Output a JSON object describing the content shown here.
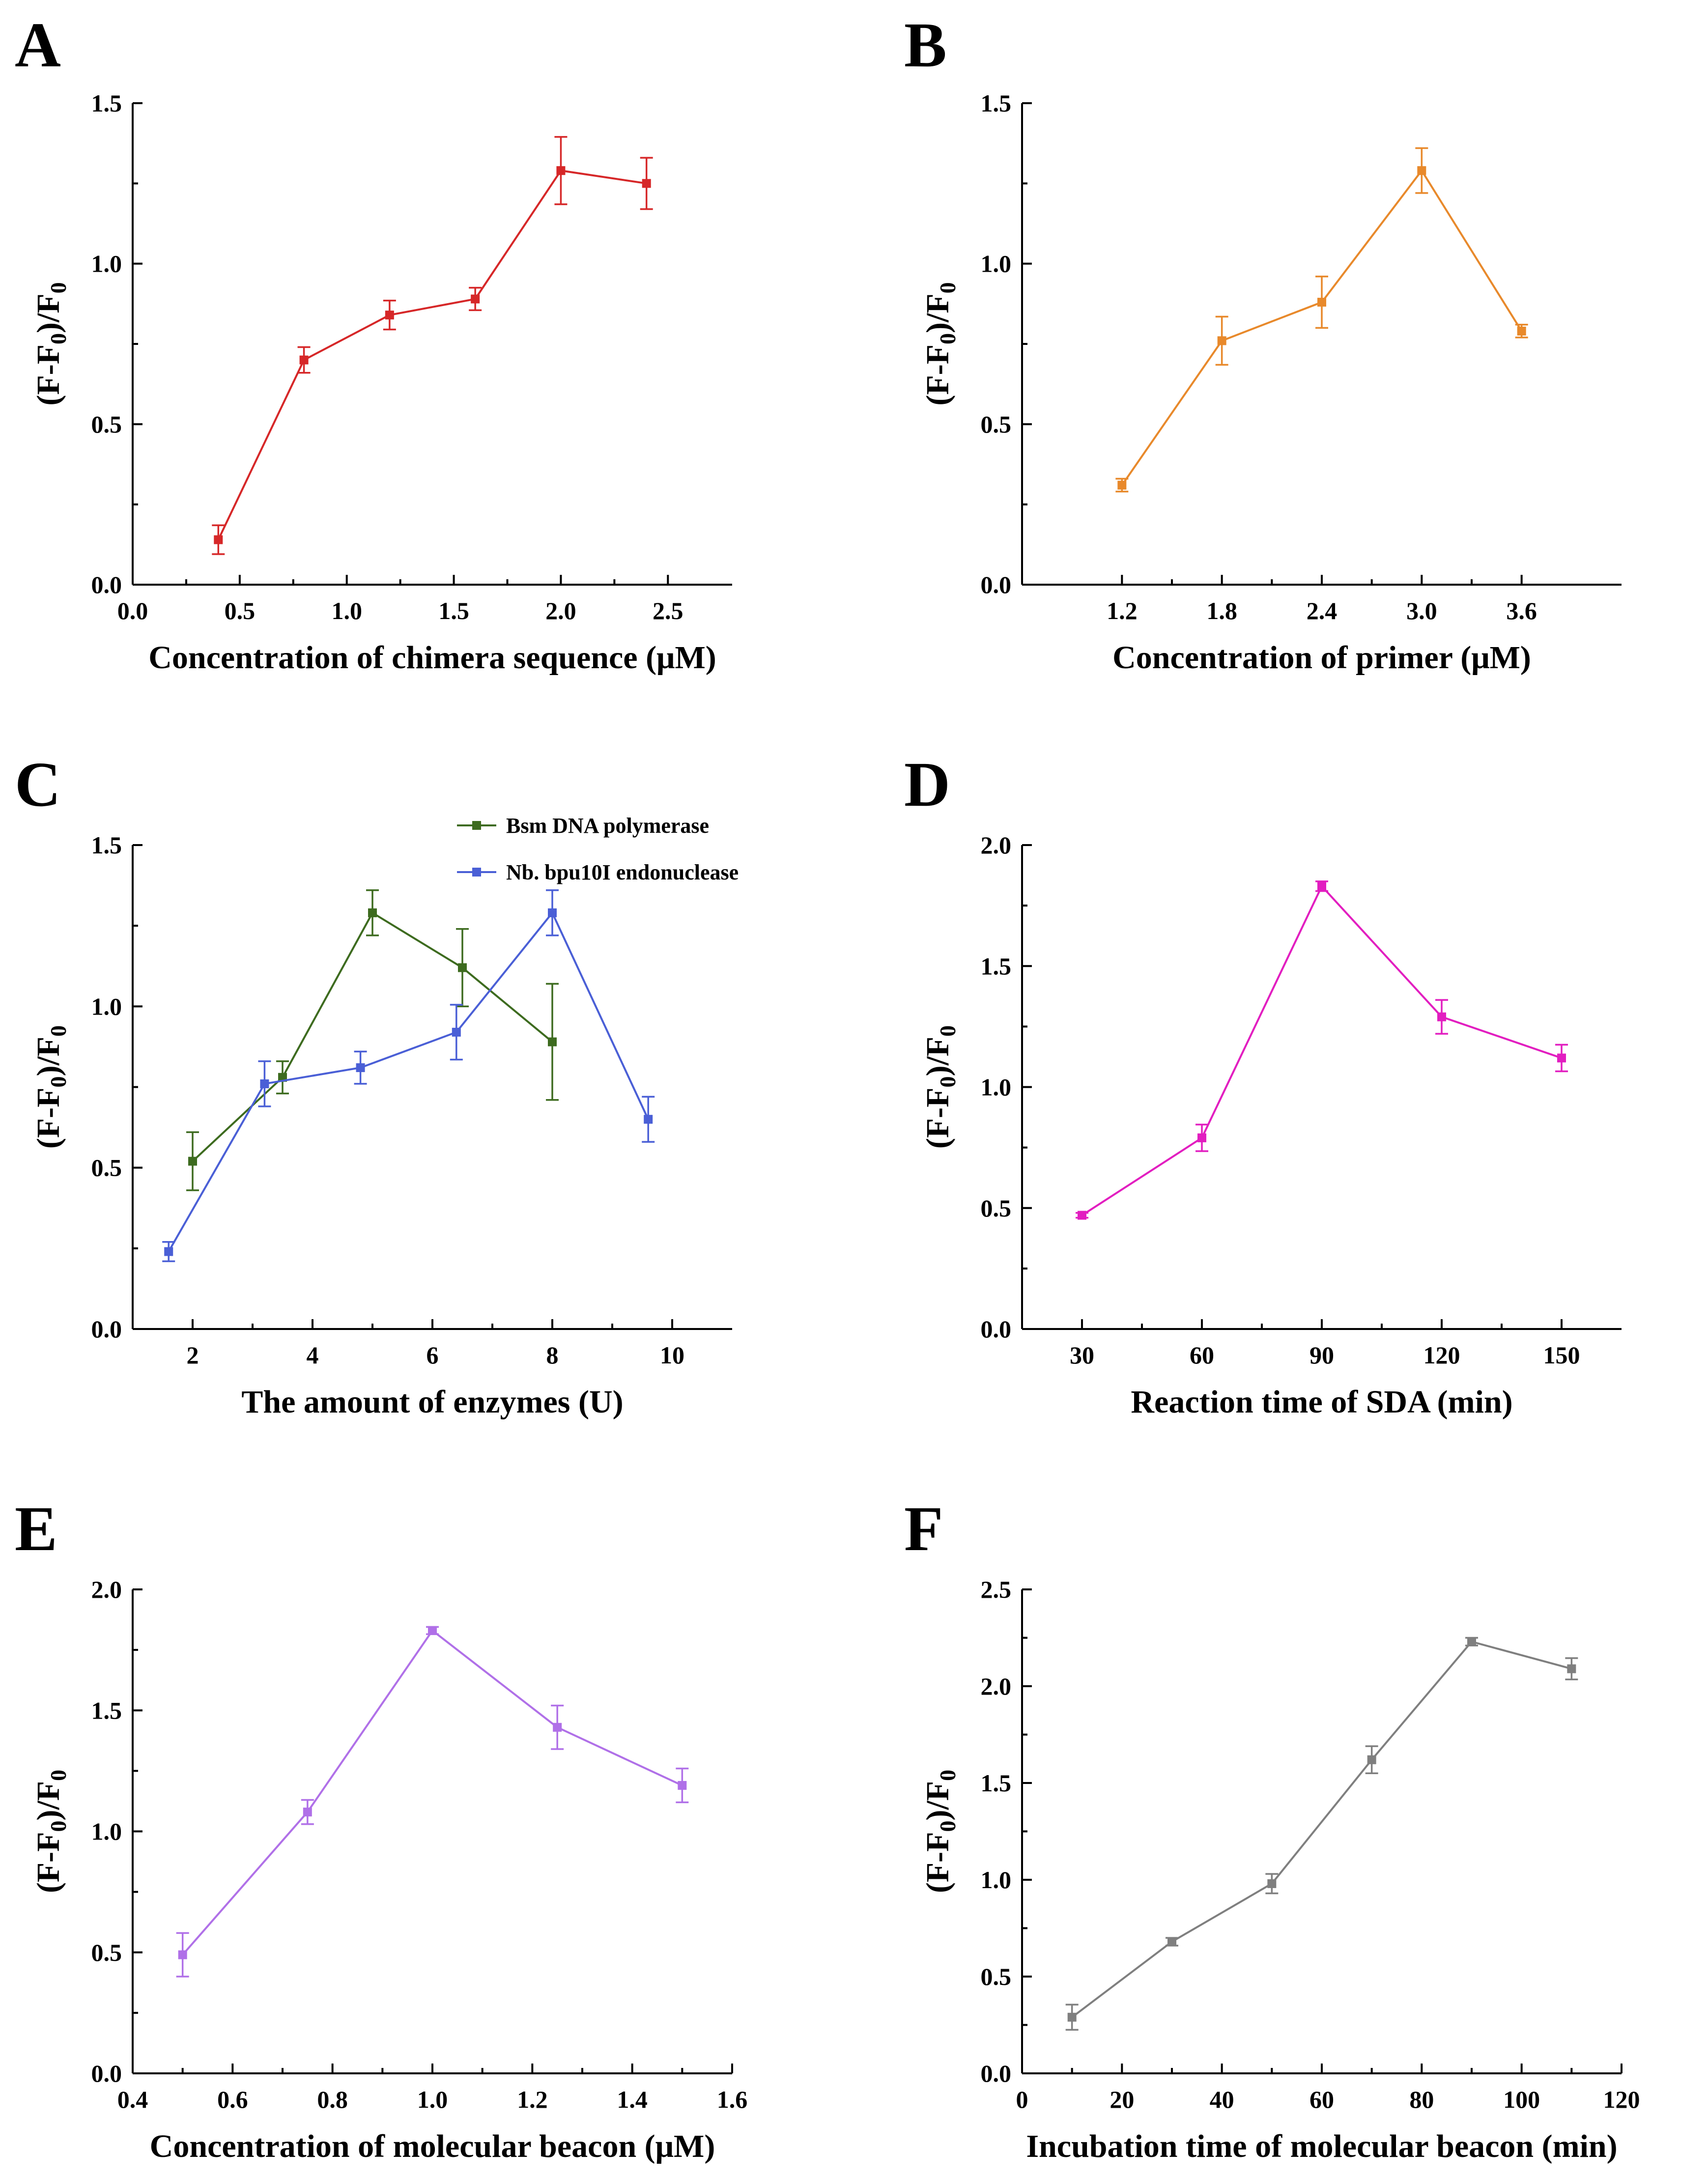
{
  "chart_data": [
    {
      "type": "line",
      "panel": "A",
      "xlabel": "Concentration of chimera sequence (μM)",
      "ylabel": "(F-F0)/F0",
      "ylabel_parts": {
        "open": "(F-F",
        "sub1": "0",
        "mid": ")/F",
        "sub2": "0"
      },
      "xlim": [
        0.0,
        2.8
      ],
      "ylim": [
        0.0,
        1.5
      ],
      "xticks": [
        0.0,
        0.5,
        1.0,
        1.5,
        2.0,
        2.5
      ],
      "xtick_labels": [
        "0.0",
        "0.5",
        "1.0",
        "1.5",
        "2.0",
        "2.5"
      ],
      "yticks": [
        0.0,
        0.5,
        1.0,
        1.5
      ],
      "ytick_labels": [
        "0.0",
        "0.5",
        "1.0",
        "1.5"
      ],
      "series": [
        {
          "name": "",
          "color": "#d62728",
          "x": [
            0.4,
            0.8,
            1.2,
            1.6,
            2.0,
            2.4
          ],
          "y": [
            0.14,
            0.7,
            0.84,
            0.89,
            1.29,
            1.25
          ],
          "err": [
            0.045,
            0.04,
            0.045,
            0.035,
            0.105,
            0.08
          ]
        }
      ]
    },
    {
      "type": "line",
      "panel": "B",
      "xlabel": "Concentration of primer (μM)",
      "ylabel": "(F-F0)/F0",
      "ylabel_parts": {
        "open": "(F-F",
        "sub1": "0",
        "mid": ")/F",
        "sub2": "0"
      },
      "xlim": [
        0.6,
        4.2
      ],
      "ylim": [
        0.0,
        1.5
      ],
      "xticks": [
        1.2,
        1.8,
        2.4,
        3.0,
        3.6
      ],
      "xtick_labels": [
        "1.2",
        "1.8",
        "2.4",
        "3.0",
        "3.6"
      ],
      "yticks": [
        0.0,
        0.5,
        1.0,
        1.5
      ],
      "ytick_labels": [
        "0.0",
        "0.5",
        "1.0",
        "1.5"
      ],
      "series": [
        {
          "name": "",
          "color": "#e8892b",
          "x": [
            1.2,
            1.8,
            2.4,
            3.0,
            3.6
          ],
          "y": [
            0.31,
            0.76,
            0.88,
            1.29,
            0.79
          ],
          "err": [
            0.02,
            0.075,
            0.08,
            0.07,
            0.02
          ]
        }
      ]
    },
    {
      "type": "line",
      "panel": "C",
      "xlabel": "The amount of enzymes (U)",
      "ylabel": "(F-F0)/F0",
      "ylabel_parts": {
        "open": "(F-F",
        "sub1": "0",
        "mid": ")/F",
        "sub2": "0"
      },
      "xlim": [
        1.0,
        11.0
      ],
      "ylim": [
        0.0,
        1.5
      ],
      "xticks": [
        2,
        4,
        6,
        8,
        10
      ],
      "xtick_labels": [
        "2",
        "4",
        "6",
        "8",
        "10"
      ],
      "yticks": [
        0.0,
        0.5,
        1.0,
        1.5
      ],
      "ytick_labels": [
        "0.0",
        "0.5",
        "1.0",
        "1.5"
      ],
      "legend": "top-right",
      "series": [
        {
          "name": "Bsm DNA polymerase",
          "color": "#3d6b1f",
          "x": [
            2.0,
            3.5,
            5.0,
            6.5,
            8.0
          ],
          "y": [
            0.52,
            0.78,
            1.29,
            1.12,
            0.89
          ],
          "err": [
            0.09,
            0.05,
            0.07,
            0.12,
            0.18
          ]
        },
        {
          "name": "Nb. bpu10I endonuclease",
          "color": "#4a5fd6",
          "x": [
            1.6,
            3.2,
            4.8,
            6.4,
            8.0,
            9.6
          ],
          "y": [
            0.24,
            0.76,
            0.81,
            0.92,
            1.29,
            0.65
          ],
          "err": [
            0.03,
            0.07,
            0.05,
            0.085,
            0.07,
            0.07
          ]
        }
      ]
    },
    {
      "type": "line",
      "panel": "D",
      "xlabel": "Reaction time of SDA (min)",
      "ylabel": "(F-F0)/F0",
      "ylabel_parts": {
        "open": "(F-F",
        "sub1": "0",
        "mid": ")/F",
        "sub2": "0"
      },
      "xlim": [
        15,
        165
      ],
      "ylim": [
        0.0,
        2.0
      ],
      "xticks": [
        30,
        60,
        90,
        120,
        150
      ],
      "xtick_labels": [
        "30",
        "60",
        "90",
        "120",
        "150"
      ],
      "yticks": [
        0.0,
        0.5,
        1.0,
        1.5,
        2.0
      ],
      "ytick_labels": [
        "0.0",
        "0.5",
        "1.0",
        "1.5",
        "2.0"
      ],
      "series": [
        {
          "name": "",
          "color": "#e21ec0",
          "x": [
            30,
            60,
            90,
            120,
            150
          ],
          "y": [
            0.47,
            0.79,
            1.83,
            1.29,
            1.12
          ],
          "err": [
            0.01,
            0.055,
            0.02,
            0.07,
            0.055
          ]
        }
      ]
    },
    {
      "type": "line",
      "panel": "E",
      "xlabel": "Concentration of molecular beacon (μM)",
      "ylabel": "(F-F0)/F0",
      "ylabel_parts": {
        "open": "(F-F",
        "sub1": "0",
        "mid": ")/F",
        "sub2": "0"
      },
      "xlim": [
        0.4,
        1.6
      ],
      "ylim": [
        0.0,
        2.0
      ],
      "xticks": [
        0.4,
        0.6,
        0.8,
        1.0,
        1.2,
        1.4,
        1.6
      ],
      "xtick_labels": [
        "0.4",
        "0.6",
        "0.8",
        "1.0",
        "1.2",
        "1.4",
        "1.6"
      ],
      "yticks": [
        0.0,
        0.5,
        1.0,
        1.5,
        2.0
      ],
      "ytick_labels": [
        "0.0",
        "0.5",
        "1.0",
        "1.5",
        "2.0"
      ],
      "series": [
        {
          "name": "",
          "color": "#b070e8",
          "x": [
            0.5,
            0.75,
            1.0,
            1.25,
            1.5
          ],
          "y": [
            0.49,
            1.08,
            1.83,
            1.43,
            1.19
          ],
          "err": [
            0.09,
            0.05,
            0.015,
            0.09,
            0.07
          ]
        }
      ]
    },
    {
      "type": "line",
      "panel": "F",
      "xlabel": "Incubation time of molecular beacon (min)",
      "ylabel": "(F-F0)/F0",
      "ylabel_parts": {
        "open": "(F-F",
        "sub1": "0",
        "mid": ")/F",
        "sub2": "0"
      },
      "xlim": [
        0,
        120
      ],
      "ylim": [
        0.0,
        2.5
      ],
      "xticks": [
        0,
        20,
        40,
        60,
        80,
        100,
        120
      ],
      "xtick_labels": [
        "0",
        "20",
        "40",
        "60",
        "80",
        "100",
        "120"
      ],
      "yticks": [
        0.0,
        0.5,
        1.0,
        1.5,
        2.0,
        2.5
      ],
      "ytick_labels": [
        "0.0",
        "0.5",
        "1.0",
        "1.5",
        "2.0",
        "2.5"
      ],
      "series": [
        {
          "name": "",
          "color": "#7f7f7f",
          "x": [
            10,
            30,
            50,
            70,
            90,
            110
          ],
          "y": [
            0.29,
            0.68,
            0.98,
            1.62,
            2.23,
            2.09
          ],
          "err": [
            0.065,
            0.02,
            0.05,
            0.07,
            0.02,
            0.055
          ]
        }
      ]
    }
  ]
}
